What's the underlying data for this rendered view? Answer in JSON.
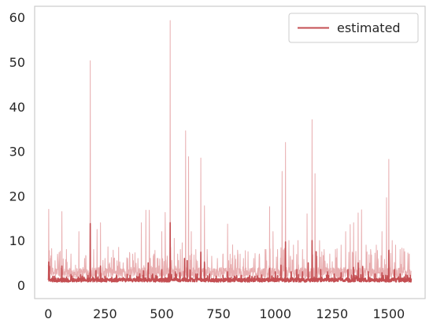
{
  "chart_data": {
    "type": "line",
    "title": "",
    "xlabel": "",
    "ylabel": "",
    "xlim": [
      -60,
      1660
    ],
    "ylim": [
      -3.0,
      62.5
    ],
    "x_ticks": [
      0,
      250,
      500,
      750,
      1000,
      1250,
      1500
    ],
    "x_tick_labels": [
      "0",
      "250",
      "500",
      "750",
      "1000",
      "1250",
      "1500"
    ],
    "y_ticks": [
      0,
      10,
      20,
      30,
      40,
      50,
      60
    ],
    "y_tick_labels": [
      "0",
      "10",
      "20",
      "30",
      "40",
      "50",
      "60"
    ],
    "grid": false,
    "legend_position": "upper right",
    "colors": {
      "estimated": "#c44e52",
      "band": "#e8aeb0",
      "frame": "#cccccc"
    },
    "x_points": 1600,
    "series": [
      {
        "name": "estimated",
        "role": "line",
        "baseline": 0.7,
        "peaks": [
          {
            "x": 2,
            "y": 5.2
          },
          {
            "x": 5,
            "y": 4.2
          },
          {
            "x": 20,
            "y": 2.0
          },
          {
            "x": 60,
            "y": 4.3
          },
          {
            "x": 80,
            "y": 1.8
          },
          {
            "x": 100,
            "y": 2.4
          },
          {
            "x": 130,
            "y": 1.5
          },
          {
            "x": 150,
            "y": 2.0
          },
          {
            "x": 175,
            "y": 2.2
          },
          {
            "x": 185,
            "y": 13.8
          },
          {
            "x": 210,
            "y": 3.3
          },
          {
            "x": 230,
            "y": 4.3
          },
          {
            "x": 250,
            "y": 2.0
          },
          {
            "x": 280,
            "y": 1.8
          },
          {
            "x": 300,
            "y": 2.0
          },
          {
            "x": 330,
            "y": 1.7
          },
          {
            "x": 360,
            "y": 2.2
          },
          {
            "x": 390,
            "y": 2.0
          },
          {
            "x": 420,
            "y": 3.2
          },
          {
            "x": 440,
            "y": 5.0
          },
          {
            "x": 460,
            "y": 2.5
          },
          {
            "x": 480,
            "y": 2.0
          },
          {
            "x": 500,
            "y": 3.5
          },
          {
            "x": 530,
            "y": 2.5
          },
          {
            "x": 537,
            "y": 14.0
          },
          {
            "x": 560,
            "y": 3.0
          },
          {
            "x": 580,
            "y": 2.8
          },
          {
            "x": 600,
            "y": 6.0
          },
          {
            "x": 612,
            "y": 5.5
          },
          {
            "x": 625,
            "y": 3.4
          },
          {
            "x": 650,
            "y": 2.5
          },
          {
            "x": 672,
            "y": 7.4
          },
          {
            "x": 688,
            "y": 5.2
          },
          {
            "x": 710,
            "y": 2.5
          },
          {
            "x": 740,
            "y": 2.0
          },
          {
            "x": 770,
            "y": 2.2
          },
          {
            "x": 790,
            "y": 3.0
          },
          {
            "x": 820,
            "y": 2.0
          },
          {
            "x": 850,
            "y": 2.2
          },
          {
            "x": 880,
            "y": 1.8
          },
          {
            "x": 910,
            "y": 2.0
          },
          {
            "x": 940,
            "y": 2.3
          },
          {
            "x": 975,
            "y": 3.8
          },
          {
            "x": 1000,
            "y": 3.0
          },
          {
            "x": 1025,
            "y": 4.5
          },
          {
            "x": 1045,
            "y": 9.7
          },
          {
            "x": 1070,
            "y": 3.0
          },
          {
            "x": 1095,
            "y": 3.5
          },
          {
            "x": 1120,
            "y": 3.0
          },
          {
            "x": 1145,
            "y": 5.0
          },
          {
            "x": 1162,
            "y": 10.0
          },
          {
            "x": 1180,
            "y": 7.5
          },
          {
            "x": 1200,
            "y": 3.5
          },
          {
            "x": 1230,
            "y": 3.0
          },
          {
            "x": 1260,
            "y": 2.5
          },
          {
            "x": 1290,
            "y": 2.8
          },
          {
            "x": 1320,
            "y": 3.5
          },
          {
            "x": 1345,
            "y": 4.0
          },
          {
            "x": 1365,
            "y": 5.0
          },
          {
            "x": 1385,
            "y": 4.2
          },
          {
            "x": 1410,
            "y": 3.0
          },
          {
            "x": 1440,
            "y": 2.5
          },
          {
            "x": 1470,
            "y": 2.8
          },
          {
            "x": 1500,
            "y": 7.8
          },
          {
            "x": 1525,
            "y": 3.5
          },
          {
            "x": 1550,
            "y": 2.5
          },
          {
            "x": 1575,
            "y": 2.3
          },
          {
            "x": 1595,
            "y": 2.2
          }
        ]
      },
      {
        "name": "",
        "role": "upper-band",
        "baseline": 1.5,
        "peaks": [
          {
            "x": 2,
            "y": 17.0
          },
          {
            "x": 10,
            "y": 6.0
          },
          {
            "x": 30,
            "y": 5.5
          },
          {
            "x": 45,
            "y": 4.0
          },
          {
            "x": 60,
            "y": 16.5
          },
          {
            "x": 80,
            "y": 8.0
          },
          {
            "x": 100,
            "y": 7.0
          },
          {
            "x": 120,
            "y": 4.5
          },
          {
            "x": 135,
            "y": 12.0
          },
          {
            "x": 160,
            "y": 6.0
          },
          {
            "x": 185,
            "y": 50.3
          },
          {
            "x": 200,
            "y": 8.0
          },
          {
            "x": 215,
            "y": 12.5
          },
          {
            "x": 230,
            "y": 14.0
          },
          {
            "x": 250,
            "y": 6.0
          },
          {
            "x": 270,
            "y": 5.0
          },
          {
            "x": 290,
            "y": 6.0
          },
          {
            "x": 310,
            "y": 8.5
          },
          {
            "x": 330,
            "y": 5.0
          },
          {
            "x": 350,
            "y": 6.0
          },
          {
            "x": 375,
            "y": 5.5
          },
          {
            "x": 395,
            "y": 6.0
          },
          {
            "x": 410,
            "y": 14.0
          },
          {
            "x": 430,
            "y": 16.8
          },
          {
            "x": 445,
            "y": 16.8
          },
          {
            "x": 465,
            "y": 7.0
          },
          {
            "x": 480,
            "y": 6.0
          },
          {
            "x": 500,
            "y": 12.0
          },
          {
            "x": 515,
            "y": 16.3
          },
          {
            "x": 537,
            "y": 59.3
          },
          {
            "x": 555,
            "y": 10.5
          },
          {
            "x": 570,
            "y": 7.0
          },
          {
            "x": 590,
            "y": 9.5
          },
          {
            "x": 605,
            "y": 34.6
          },
          {
            "x": 618,
            "y": 28.8
          },
          {
            "x": 630,
            "y": 12.0
          },
          {
            "x": 650,
            "y": 8.0
          },
          {
            "x": 672,
            "y": 28.5
          },
          {
            "x": 688,
            "y": 17.8
          },
          {
            "x": 700,
            "y": 8.0
          },
          {
            "x": 720,
            "y": 6.5
          },
          {
            "x": 745,
            "y": 6.0
          },
          {
            "x": 770,
            "y": 7.0
          },
          {
            "x": 790,
            "y": 13.7
          },
          {
            "x": 810,
            "y": 6.0
          },
          {
            "x": 835,
            "y": 7.0
          },
          {
            "x": 860,
            "y": 6.0
          },
          {
            "x": 880,
            "y": 7.5
          },
          {
            "x": 905,
            "y": 6.0
          },
          {
            "x": 930,
            "y": 7.0
          },
          {
            "x": 955,
            "y": 8.0
          },
          {
            "x": 975,
            "y": 17.6
          },
          {
            "x": 990,
            "y": 12.0
          },
          {
            "x": 1010,
            "y": 8.0
          },
          {
            "x": 1030,
            "y": 25.5
          },
          {
            "x": 1045,
            "y": 32.0
          },
          {
            "x": 1060,
            "y": 10.0
          },
          {
            "x": 1080,
            "y": 9.0
          },
          {
            "x": 1100,
            "y": 10.0
          },
          {
            "x": 1120,
            "y": 8.0
          },
          {
            "x": 1140,
            "y": 16.0
          },
          {
            "x": 1162,
            "y": 37.1
          },
          {
            "x": 1175,
            "y": 25.0
          },
          {
            "x": 1195,
            "y": 10.0
          },
          {
            "x": 1215,
            "y": 8.0
          },
          {
            "x": 1240,
            "y": 7.0
          },
          {
            "x": 1265,
            "y": 8.0
          },
          {
            "x": 1290,
            "y": 9.0
          },
          {
            "x": 1310,
            "y": 12.0
          },
          {
            "x": 1330,
            "y": 13.6
          },
          {
            "x": 1345,
            "y": 14.0
          },
          {
            "x": 1365,
            "y": 16.2
          },
          {
            "x": 1380,
            "y": 16.9
          },
          {
            "x": 1400,
            "y": 9.0
          },
          {
            "x": 1420,
            "y": 8.0
          },
          {
            "x": 1445,
            "y": 9.0
          },
          {
            "x": 1470,
            "y": 12.0
          },
          {
            "x": 1490,
            "y": 19.6
          },
          {
            "x": 1500,
            "y": 28.2
          },
          {
            "x": 1515,
            "y": 10.0
          },
          {
            "x": 1530,
            "y": 9.0
          },
          {
            "x": 1550,
            "y": 8.0
          },
          {
            "x": 1570,
            "y": 7.5
          },
          {
            "x": 1590,
            "y": 7.0
          }
        ]
      }
    ]
  }
}
